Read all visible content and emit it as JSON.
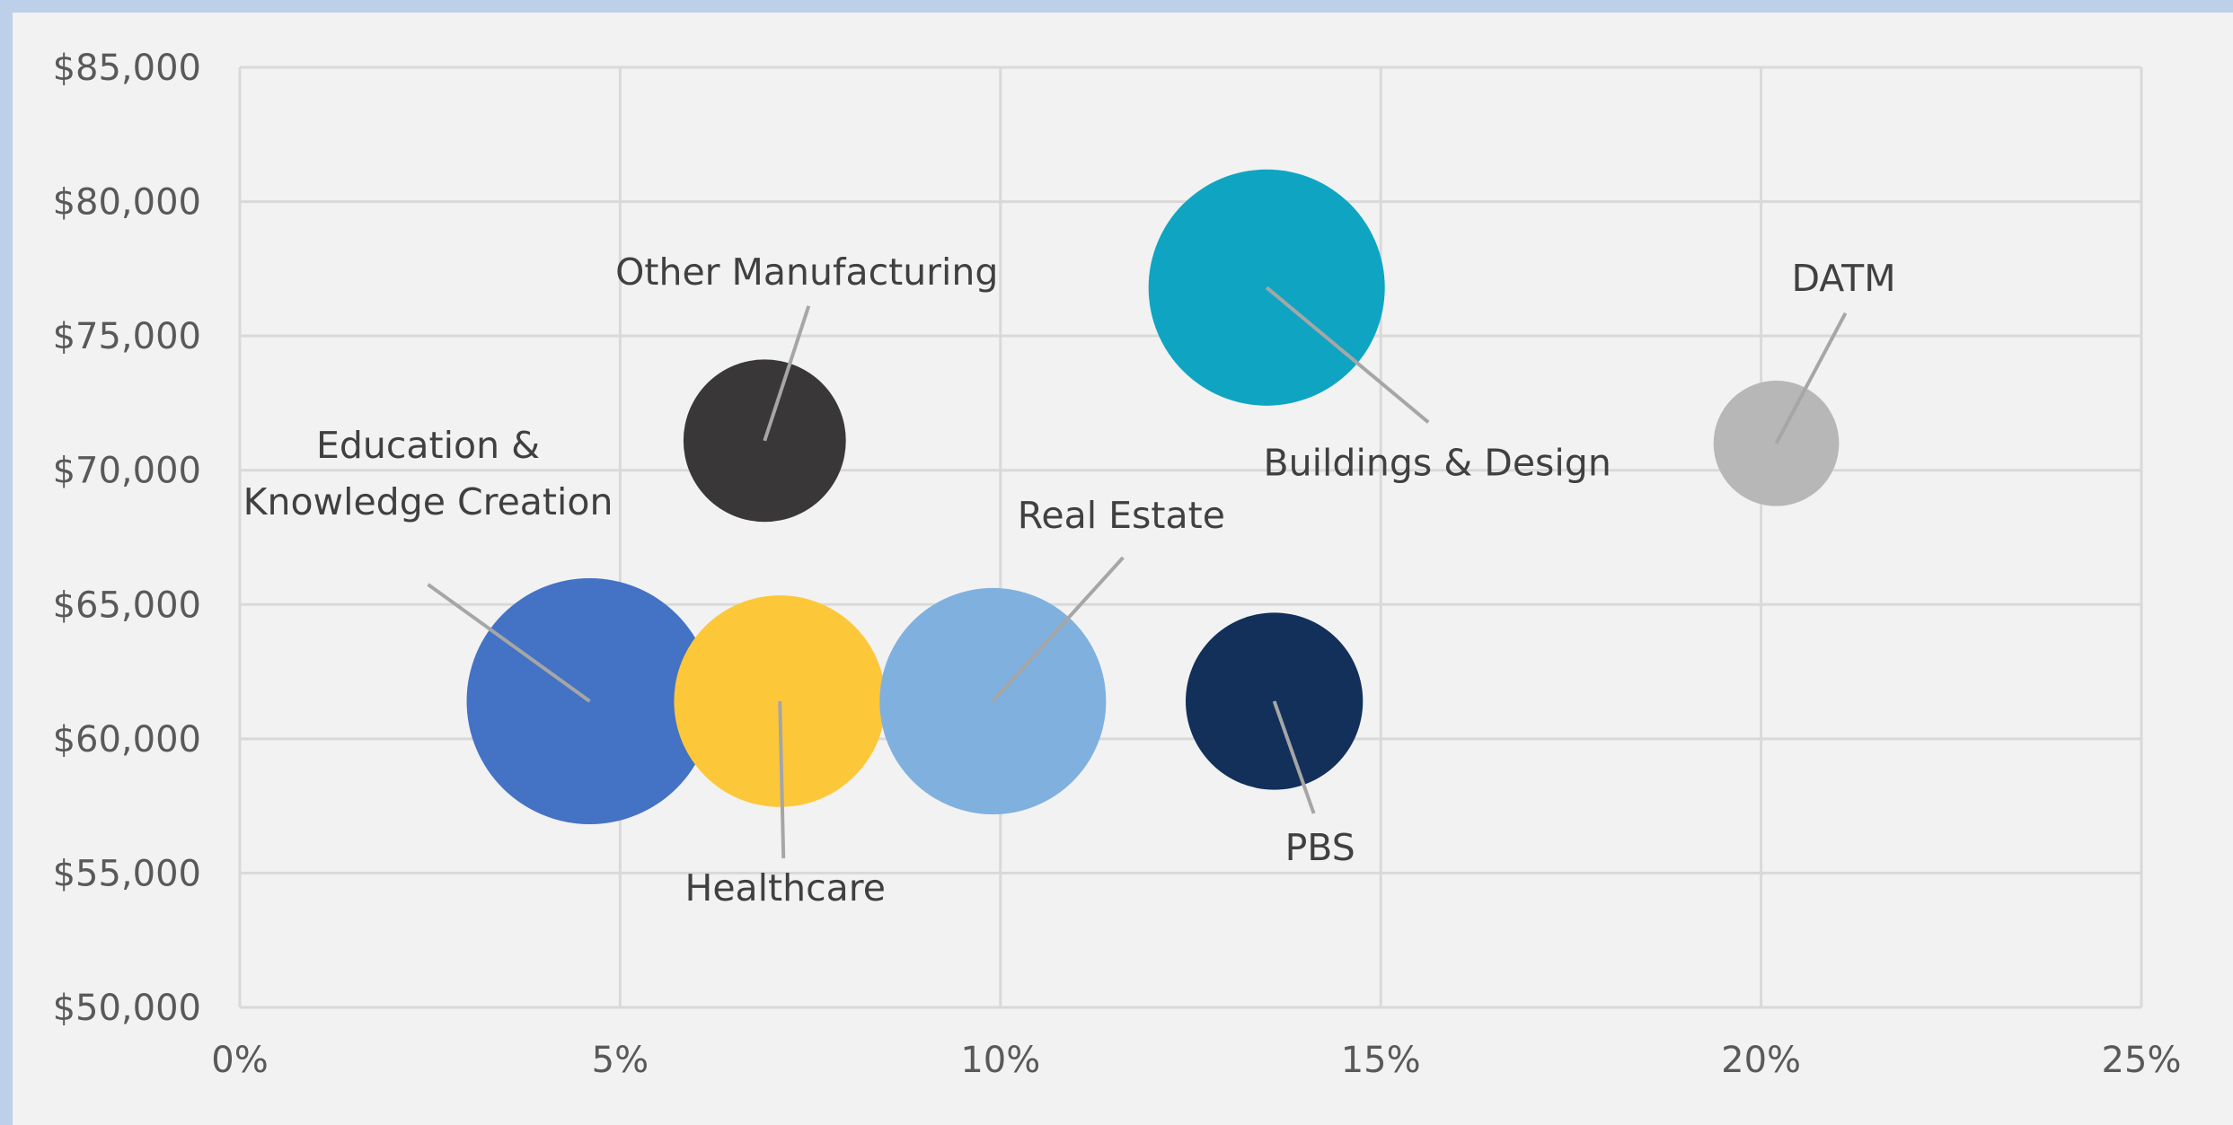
{
  "chart_data": {
    "type": "bubble",
    "x_ticks": [
      "0%",
      "5%",
      "10%",
      "15%",
      "20%",
      "25%"
    ],
    "y_ticks": [
      "$50,000",
      "$55,000",
      "$60,000",
      "$65,000",
      "$70,000",
      "$75,000",
      "$80,000",
      "$85,000"
    ],
    "xlim": [
      0,
      25
    ],
    "ylim": [
      50000,
      85000
    ],
    "grid": true,
    "points": [
      {
        "label": [
          "Education &",
          "Knowledge Creation"
        ],
        "x": 4.6,
        "y": 61400,
        "size": 1.0,
        "color": "#4472c4"
      },
      {
        "label": [
          "Healthcare"
        ],
        "x": 7.1,
        "y": 61400,
        "size": 0.86,
        "color": "#fcc83a"
      },
      {
        "label": [
          "Real Estate"
        ],
        "x": 9.9,
        "y": 61400,
        "size": 0.92,
        "color": "#7fb0de"
      },
      {
        "label": [
          "Other Manufacturing"
        ],
        "x": 6.9,
        "y": 71100,
        "size": 0.66,
        "color": "#393737"
      },
      {
        "label": [
          "Buildings & Design"
        ],
        "x": 13.5,
        "y": 76800,
        "size": 0.96,
        "color": "#0fa5c2"
      },
      {
        "label": [
          "PBS"
        ],
        "x": 13.6,
        "y": 61400,
        "size": 0.72,
        "color": "#12305a"
      },
      {
        "label": [
          "DATM"
        ],
        "x": 20.2,
        "y": 71000,
        "size": 0.51,
        "color": "#b7b7b7"
      }
    ]
  }
}
